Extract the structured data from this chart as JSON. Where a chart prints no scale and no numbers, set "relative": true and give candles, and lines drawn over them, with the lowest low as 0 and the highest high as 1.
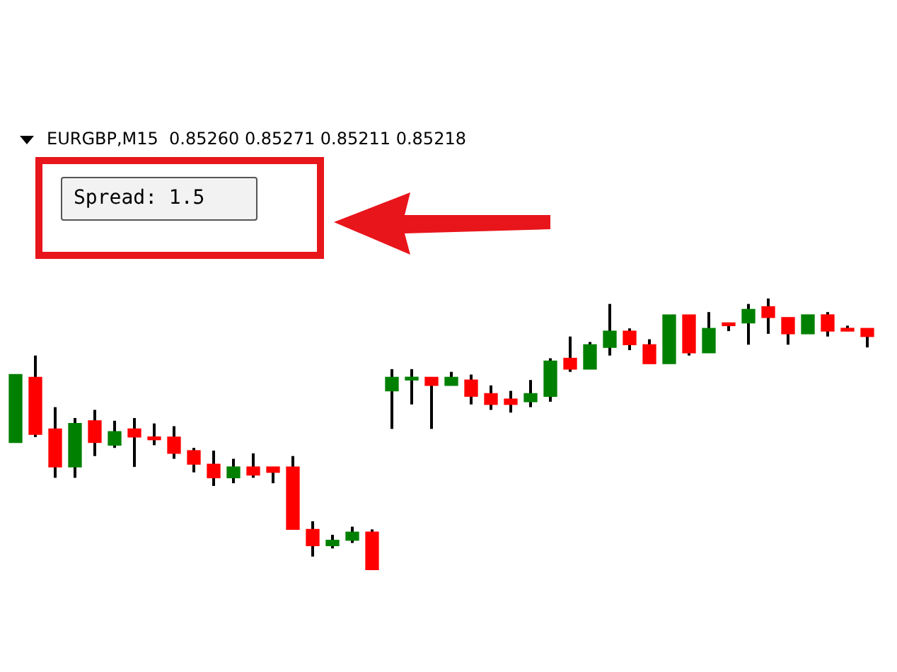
{
  "chart_data": {
    "type": "candlestick",
    "title": "EURGBP,M15  0.85260 0.85271 0.85211 0.85218",
    "annotations": [
      "Spread: 1.5"
    ],
    "relative": true,
    "categories": [
      null,
      null,
      null,
      null,
      null,
      null,
      null,
      null,
      null,
      null,
      null,
      null,
      null,
      null,
      null,
      null,
      null,
      null,
      null,
      null,
      null,
      null,
      null,
      null,
      null,
      null,
      null,
      null,
      null,
      null,
      null,
      null,
      null,
      null,
      null,
      null,
      null,
      null,
      null,
      null,
      null,
      null,
      null,
      null
    ],
    "ohlc": [
      [
        0.47,
        0.72,
        0.47,
        0.72
      ],
      [
        0.71,
        0.79,
        0.49,
        0.5
      ],
      [
        0.52,
        0.6,
        0.34,
        0.38
      ],
      [
        0.38,
        0.56,
        0.34,
        0.54
      ],
      [
        0.55,
        0.59,
        0.42,
        0.47
      ],
      [
        0.46,
        0.55,
        0.45,
        0.51
      ],
      [
        0.52,
        0.56,
        0.38,
        0.49
      ],
      [
        0.49,
        0.54,
        0.46,
        0.48
      ],
      [
        0.49,
        0.53,
        0.41,
        0.43
      ],
      [
        0.44,
        0.45,
        0.36,
        0.39
      ],
      [
        0.39,
        0.44,
        0.31,
        0.34
      ],
      [
        0.34,
        0.41,
        0.32,
        0.38
      ],
      [
        0.38,
        0.43,
        0.34,
        0.35
      ],
      [
        0.38,
        0.38,
        0.32,
        0.36
      ],
      [
        0.38,
        0.42,
        0.15,
        0.15
      ],
      [
        0.15,
        0.18,
        0.05,
        0.09
      ],
      [
        0.09,
        0.13,
        0.08,
        0.11
      ],
      [
        0.11,
        0.16,
        0.1,
        0.14
      ],
      [
        0.14,
        0.15,
        0,
        0
      ],
      [
        0.66,
        0.74,
        0.52,
        0.71
      ],
      [
        0.7,
        0.74,
        0.61,
        0.71
      ],
      [
        0.71,
        0.71,
        0.52,
        0.68
      ],
      [
        0.68,
        0.73,
        0.68,
        0.71
      ],
      [
        0.7,
        0.72,
        0.61,
        0.64
      ],
      [
        0.65,
        0.68,
        0.59,
        0.61
      ],
      [
        0.63,
        0.66,
        0.58,
        0.61
      ],
      [
        0.62,
        0.7,
        0.6,
        0.65
      ],
      [
        0.64,
        0.78,
        0.62,
        0.77
      ],
      [
        0.78,
        0.86,
        0.73,
        0.74
      ],
      [
        0.74,
        0.84,
        0.74,
        0.83
      ],
      [
        0.82,
        0.98,
        0.79,
        0.88
      ],
      [
        0.88,
        0.89,
        0.81,
        0.83
      ],
      [
        0.83,
        0.85,
        0.76,
        0.76
      ],
      [
        0.76,
        0.94,
        0.76,
        0.94
      ],
      [
        0.94,
        0.94,
        0.79,
        0.8
      ],
      [
        0.8,
        0.95,
        0.8,
        0.89
      ],
      [
        0.91,
        0.91,
        0.88,
        0.9
      ],
      [
        0.91,
        0.98,
        0.83,
        0.96
      ],
      [
        0.97,
        1,
        0.87,
        0.93
      ],
      [
        0.93,
        0.93,
        0.83,
        0.87
      ],
      [
        0.87,
        0.94,
        0.87,
        0.94
      ],
      [
        0.94,
        0.95,
        0.86,
        0.88
      ],
      [
        0.89,
        0.9,
        0.88,
        0.88
      ],
      [
        0.89,
        0.89,
        0.82,
        0.86
      ]
    ],
    "colors": [
      "#008000",
      "#ff0000",
      "#ff0000",
      "#008000",
      "#ff0000",
      "#008000",
      "#ff0000",
      "#ff0000",
      "#ff0000",
      "#ff0000",
      "#ff0000",
      "#008000",
      "#ff0000",
      "#ff0000",
      "#ff0000",
      "#ff0000",
      "#008000",
      "#008000",
      "#ff0000",
      "#008000",
      "#008000",
      "#ff0000",
      "#008000",
      "#ff0000",
      "#ff0000",
      "#ff0000",
      "#008000",
      "#008000",
      "#ff0000",
      "#008000",
      "#008000",
      "#ff0000",
      "#ff0000",
      "#008000",
      "#ff0000",
      "#008000",
      "#ff0000",
      "#008000",
      "#ff0000",
      "#ff0000",
      "#008000",
      "#ff0000",
      "#ff0000",
      "#ff0000"
    ]
  }
}
